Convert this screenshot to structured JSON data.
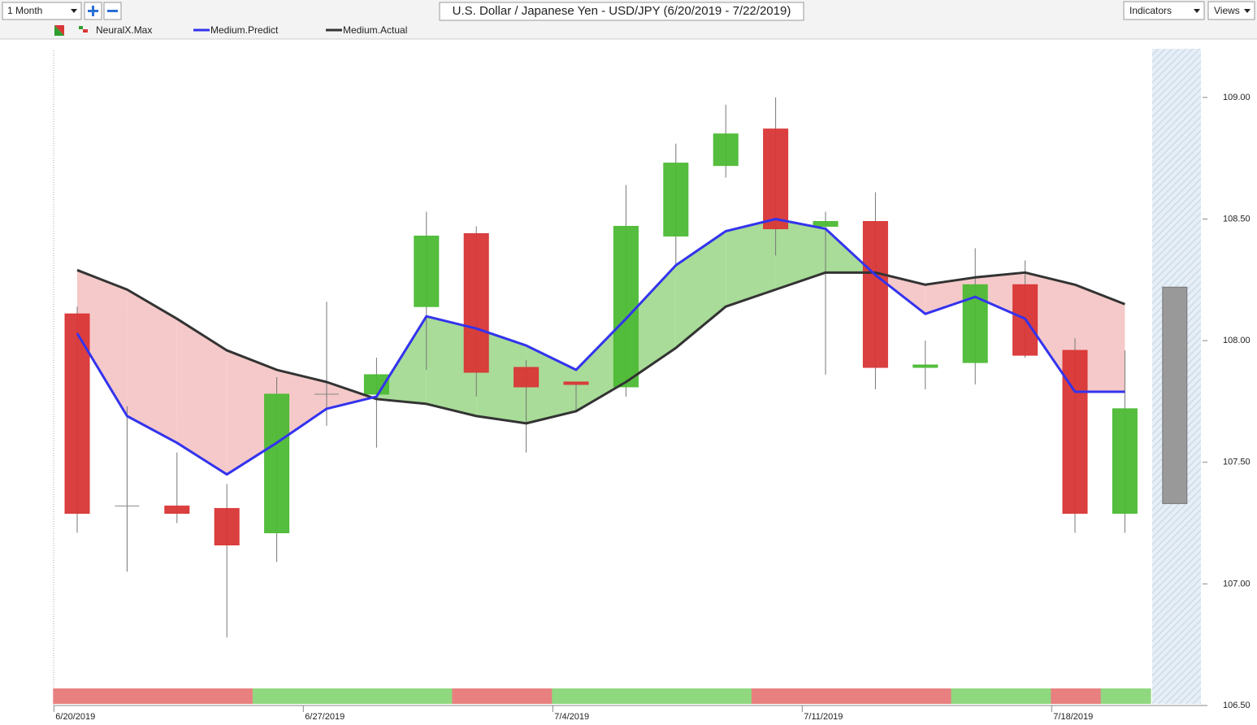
{
  "toolbar": {
    "range": "1 Month",
    "indicators": "Indicators",
    "views": "Views"
  },
  "chart_data": {
    "type": "candlestick",
    "title": "U.S. Dollar / Japanese Yen - USD/JPY (6/20/2019 - 7/22/2019)",
    "categories": [
      "6/20/2019",
      null,
      null,
      null,
      null,
      "6/27/2019",
      null,
      null,
      null,
      null,
      "7/4/2019",
      null,
      null,
      null,
      null,
      "7/11/2019",
      null,
      null,
      null,
      null,
      "7/18/2019",
      null
    ],
    "open": [
      108.11,
      107.32,
      107.32,
      107.31,
      107.21,
      107.78,
      107.78,
      108.14,
      108.44,
      107.89,
      107.83,
      107.81,
      108.43,
      108.72,
      108.87,
      108.47,
      108.49,
      107.89,
      107.91,
      108.23,
      107.96,
      107.29
    ],
    "high": [
      108.14,
      107.73,
      107.54,
      107.41,
      107.85,
      108.16,
      107.93,
      108.53,
      108.47,
      107.92,
      107.83,
      108.64,
      108.81,
      108.97,
      109.0,
      108.53,
      108.61,
      108.0,
      108.38,
      108.33,
      108.01,
      107.96
    ],
    "low": [
      107.21,
      107.05,
      107.25,
      106.78,
      107.09,
      107.65,
      107.56,
      107.88,
      107.77,
      107.54,
      107.71,
      107.77,
      108.31,
      108.67,
      108.35,
      107.86,
      107.8,
      107.8,
      107.82,
      107.93,
      107.21,
      107.21
    ],
    "close": [
      107.29,
      107.32,
      107.29,
      107.16,
      107.78,
      107.78,
      107.86,
      108.43,
      107.87,
      107.81,
      107.82,
      108.47,
      108.73,
      108.85,
      108.46,
      108.49,
      107.89,
      107.9,
      108.23,
      107.94,
      107.29,
      107.72
    ],
    "up_color": "#4dbb35",
    "down_color": "#d93636",
    "flat_color": "#888888",
    "forecast": {
      "high": 108.22,
      "low": 107.33,
      "color": "#999999"
    },
    "series": [
      {
        "name": "NeuralX.Max",
        "up_color": "#90d880",
        "down_color": "#e88080",
        "values": [
          -1,
          -1,
          -1,
          -1,
          1,
          1,
          1,
          1,
          -1,
          -1,
          1,
          1,
          1,
          1,
          -1,
          -1,
          -1,
          -1,
          1,
          1,
          -1,
          1
        ]
      },
      {
        "name": "Medium.Predict",
        "color": "#3333ee",
        "values": [
          108.03,
          107.69,
          107.58,
          107.45,
          107.58,
          107.72,
          107.77,
          108.1,
          108.05,
          107.98,
          107.88,
          108.09,
          108.31,
          108.45,
          108.5,
          108.46,
          108.27,
          108.11,
          108.18,
          108.09,
          107.79,
          107.79
        ]
      },
      {
        "name": "Medium.Actual",
        "color": "#333333",
        "values": [
          108.29,
          108.21,
          108.09,
          107.96,
          107.88,
          107.83,
          107.76,
          107.74,
          107.69,
          107.66,
          107.71,
          107.83,
          107.97,
          108.14,
          108.21,
          108.28,
          108.28,
          108.23,
          108.26,
          108.28,
          108.23,
          108.15
        ]
      }
    ],
    "fill_up_color": "#a8dc98",
    "fill_down_color": "#f5c9c9",
    "ylim": [
      106.5,
      109.2
    ],
    "yticks": [
      {
        "value": 106.5,
        "label": "106.50"
      },
      {
        "value": 107,
        "label": "107.00"
      },
      {
        "value": 107.5,
        "label": "107.50"
      },
      {
        "value": 108,
        "label": "108.00"
      },
      {
        "value": 108.5,
        "label": "108.50"
      },
      {
        "value": 109,
        "label": "109.00"
      }
    ]
  }
}
